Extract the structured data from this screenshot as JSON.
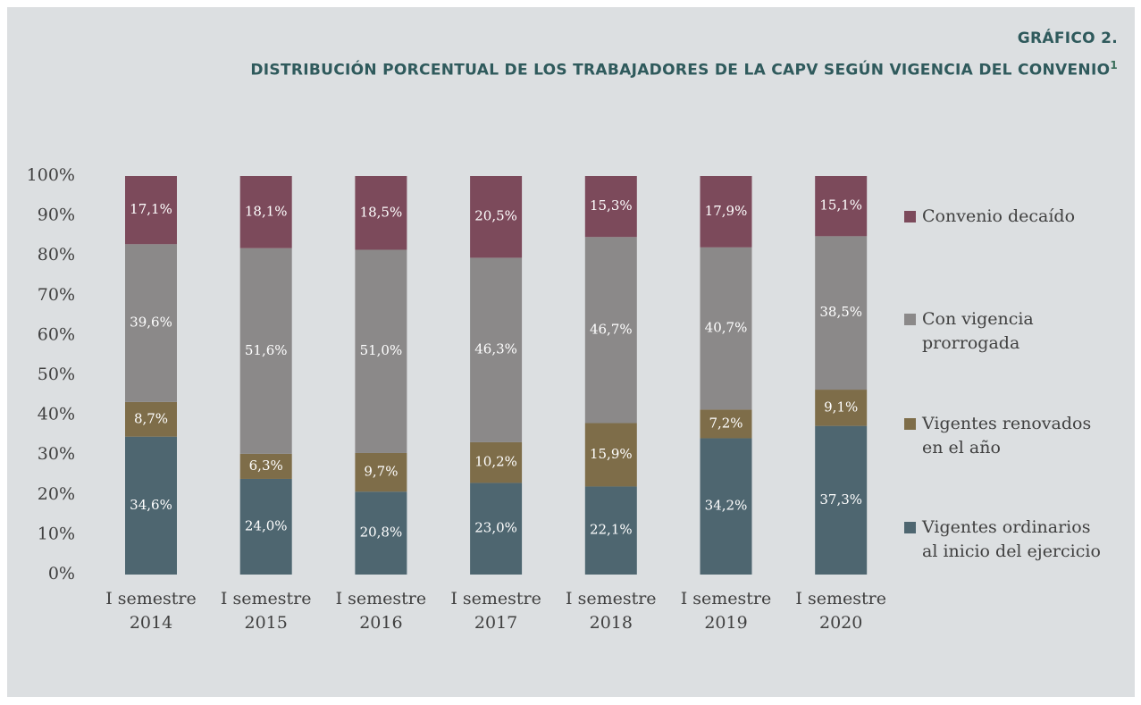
{
  "chart_data": {
    "type": "stacked_bar",
    "title": "GRÁFICO 2.",
    "subtitle": "DISTRIBUCIÓN PORCENTUAL DE LOS TRABAJADORES DE LA CAPV SEGÚN VIGENCIA DEL CONVENIO",
    "footnote_mark": "1",
    "categories": [
      "I semestre 2014",
      "I semestre 2015",
      "I semestre 2016",
      "I semestre 2017",
      "I semestre 2018",
      "I semestre 2019",
      "I semestre 2020"
    ],
    "series": [
      {
        "name": "Vigentes ordinarios al inicio del ejercicio",
        "color": "#4e6670",
        "values": [
          34.6,
          24.0,
          20.8,
          23.0,
          22.1,
          34.2,
          37.3
        ],
        "value_labels": [
          "34,6%",
          "24,0%",
          "20,8%",
          "23,0%",
          "22,1%",
          "34,2%",
          "37,3%"
        ]
      },
      {
        "name": "Vigentes renovados en el año",
        "color": "#7e6d49",
        "values": [
          8.7,
          6.3,
          9.7,
          10.2,
          15.9,
          7.2,
          9.1
        ],
        "value_labels": [
          "8,7%",
          "6,3%",
          "9,7%",
          "10,2%",
          "15,9%",
          "7,2%",
          "9,1%"
        ]
      },
      {
        "name": "Con vigencia prorrogada",
        "color": "#8b8989",
        "values": [
          39.6,
          51.6,
          51.0,
          46.3,
          46.7,
          40.7,
          38.5
        ],
        "value_labels": [
          "39,6%",
          "51,6%",
          "51,0%",
          "46,3%",
          "46,7%",
          "40,7%",
          "38,5%"
        ]
      },
      {
        "name": "Convenio decaído",
        "color": "#7c4a5b",
        "values": [
          17.1,
          18.1,
          18.5,
          20.5,
          15.3,
          17.9,
          15.1
        ],
        "value_labels": [
          "17,1%",
          "18,1%",
          "18,5%",
          "20,5%",
          "15,3%",
          "17,9%",
          "15,1%"
        ]
      }
    ],
    "ylim": [
      0,
      100
    ],
    "yticks": [
      {
        "value": 0,
        "label": "0%"
      },
      {
        "value": 10,
        "label": "10%"
      },
      {
        "value": 20,
        "label": "20%"
      },
      {
        "value": 30,
        "label": "30%"
      },
      {
        "value": 40,
        "label": "40%"
      },
      {
        "value": 50,
        "label": "50%"
      },
      {
        "value": 60,
        "label": "60%"
      },
      {
        "value": 70,
        "label": "70%"
      },
      {
        "value": 80,
        "label": "80%"
      },
      {
        "value": 90,
        "label": "90%"
      },
      {
        "value": 100,
        "label": "100%"
      }
    ],
    "grid": false,
    "legend": "right"
  }
}
